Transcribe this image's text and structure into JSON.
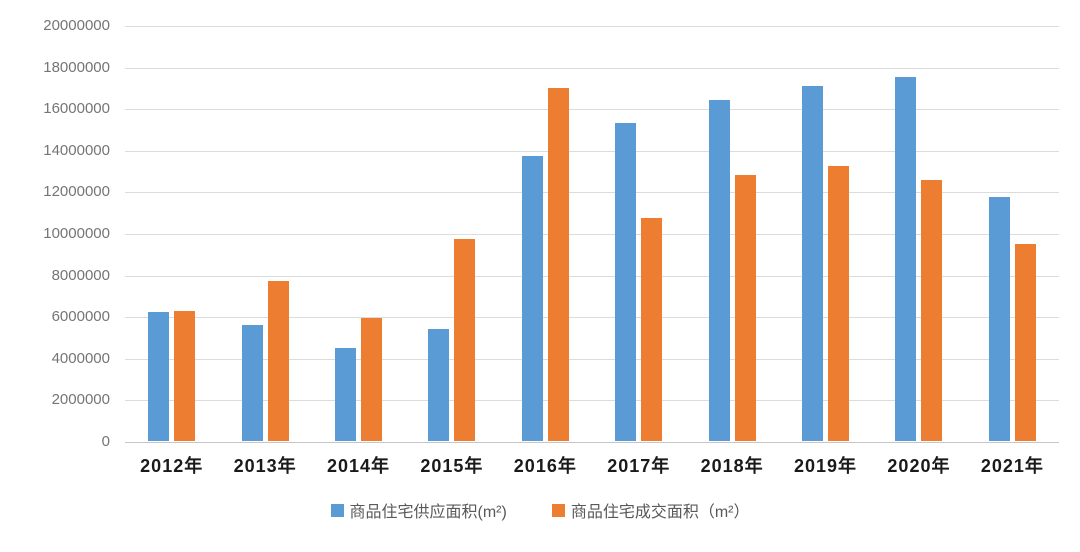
{
  "chart_data": {
    "type": "bar",
    "categories": [
      "2012年",
      "2013年",
      "2014年",
      "2015年",
      "2016年",
      "2017年",
      "2018年",
      "2019年",
      "2020年",
      "2021年"
    ],
    "series": [
      {
        "name": "商品住宅供应面积(m²)",
        "color": "#5B9BD5",
        "values": [
          6200000,
          5600000,
          4450000,
          5400000,
          13700000,
          15300000,
          16400000,
          17050000,
          17500000,
          11750000
        ]
      },
      {
        "name": "商品住宅成交面积（m²）",
        "color": "#ED7D31",
        "values": [
          6250000,
          7700000,
          5900000,
          9700000,
          16950000,
          10700000,
          12800000,
          13200000,
          12550000,
          9450000
        ]
      }
    ],
    "title": "",
    "xlabel": "",
    "ylabel": "",
    "ylim": [
      0,
      20000000
    ],
    "ytick_step": 2000000,
    "yticks": [
      "20000000",
      "18000000",
      "16000000",
      "14000000",
      "12000000",
      "10000000",
      "8000000",
      "6000000",
      "4000000",
      "2000000",
      "0"
    ],
    "grid": true,
    "legend_position": "bottom"
  },
  "colors": {
    "gridline": "#DCDCDC",
    "baseline": "#C6C6C6",
    "ytick_text": "#757575",
    "xtick_text": "#1A1A1A",
    "legend_text": "#595959",
    "background": "#FFFFFF"
  }
}
